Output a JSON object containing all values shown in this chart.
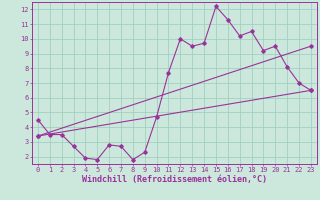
{
  "xlabel": "Windchill (Refroidissement éolien,°C)",
  "bg_color": "#cce8dd",
  "line_color": "#993399",
  "grid_color": "#99ccbb",
  "xlim": [
    -0.5,
    23.5
  ],
  "ylim": [
    1.5,
    12.5
  ],
  "xticks": [
    0,
    1,
    2,
    3,
    4,
    5,
    6,
    7,
    8,
    9,
    10,
    11,
    12,
    13,
    14,
    15,
    16,
    17,
    18,
    19,
    20,
    21,
    22,
    23
  ],
  "yticks": [
    2,
    3,
    4,
    5,
    6,
    7,
    8,
    9,
    10,
    11,
    12
  ],
  "line1_x": [
    0,
    1,
    2,
    3,
    4,
    5,
    6,
    7,
    8,
    9,
    10,
    11,
    12,
    13,
    14,
    15,
    16,
    17,
    18,
    19,
    20,
    21,
    22,
    23
  ],
  "line1_y": [
    4.5,
    3.5,
    3.5,
    2.7,
    1.9,
    1.8,
    2.8,
    2.7,
    1.8,
    2.3,
    4.7,
    7.7,
    10.0,
    9.5,
    9.7,
    12.2,
    11.3,
    10.2,
    10.5,
    9.2,
    9.5,
    8.1,
    7.0,
    6.5
  ],
  "line2_x": [
    0,
    23
  ],
  "line2_y": [
    3.4,
    6.5
  ],
  "line3_x": [
    0,
    23
  ],
  "line3_y": [
    3.4,
    9.5
  ],
  "marker": "D",
  "marker_size": 1.8,
  "linewidth": 0.8,
  "tick_fontsize": 5,
  "xlabel_fontsize": 6
}
